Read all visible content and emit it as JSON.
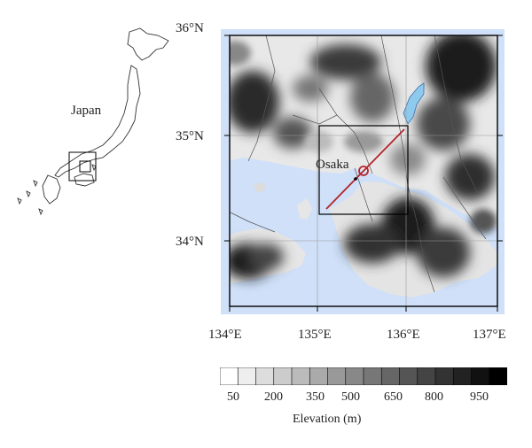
{
  "inset": {
    "label": "Japan"
  },
  "main_map": {
    "lat_labels": [
      "36°N",
      "35°N",
      "34°N"
    ],
    "lon_labels": [
      "134°E",
      "135°E",
      "136°E",
      "137°E"
    ],
    "city_label": "Osaka"
  },
  "colorbar": {
    "title": "Elevation (m)",
    "tick_labels": [
      "50",
      "200",
      "350",
      "500",
      "650",
      "800",
      "950"
    ],
    "levels": 16
  },
  "colors": {
    "water": "#cfe0f8",
    "lake": "#8ec9ee",
    "transect": "#b5242b",
    "frame": "#000000"
  }
}
